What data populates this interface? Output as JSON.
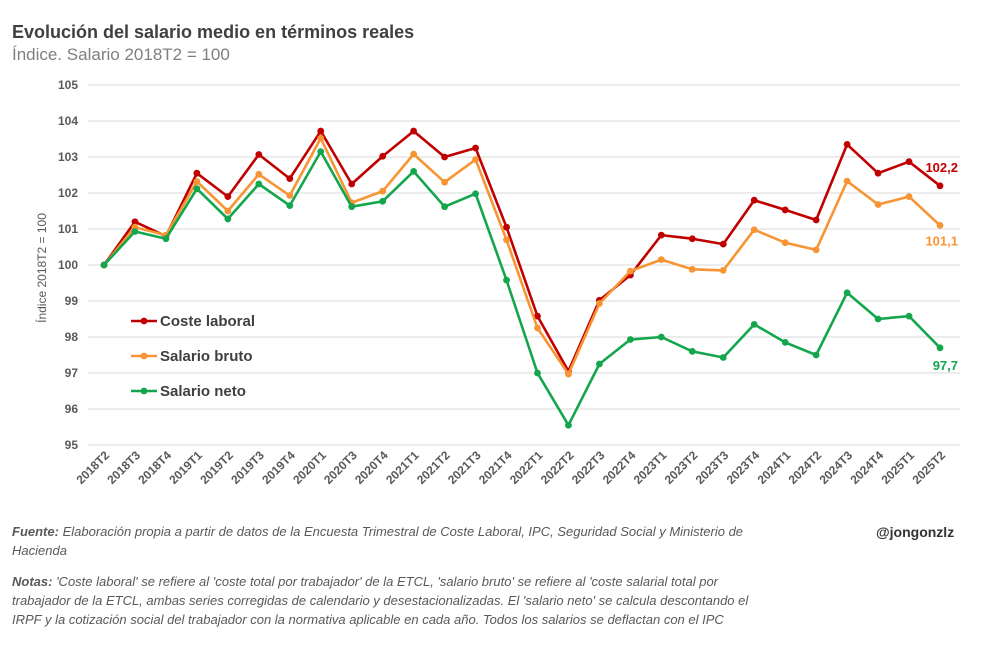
{
  "title": "Evolución del salario medio en términos reales",
  "subtitle": "Índice. Salario 2018T2 = 100",
  "source_label": "Fuente:",
  "source_text": "Elaboración propia a partir de datos de la Encuesta Trimestral de Coste Laboral, IPC, Seguridad Social y Ministerio de Hacienda",
  "notes_label": "Notas:",
  "notes_text": "'Coste laboral' se refiere al 'coste total por trabajador' de la ETCL, 'salario bruto' se refiere al 'coste salarial total por trabajador de la ETCL, ambas series corregidas de calendario y desestacionalizadas. El 'salario neto' se calcula descontando el IRPF y la cotización social del trabajador con la normativa aplicable en cada año. Todos los salarios se deflactan con el IPC",
  "handle": "@jongonzlz",
  "chart_data": {
    "type": "line",
    "ylabel": "Índice 2018T2 = 100",
    "xlabel": "",
    "ylim": [
      95,
      105
    ],
    "yticks": [
      95,
      96,
      97,
      98,
      99,
      100,
      101,
      102,
      103,
      104,
      105
    ],
    "grid": "horizontal",
    "legend_position": "left-middle",
    "categories": [
      "2018T2",
      "2018T3",
      "2018T4",
      "2019T1",
      "2019T2",
      "2019T3",
      "2019T4",
      "2020T1",
      "2020T3",
      "2020T4",
      "2021T1",
      "2021T2",
      "2021T3",
      "2021T4",
      "2022T1",
      "2022T2",
      "2022T3",
      "2022T4",
      "2023T1",
      "2023T2",
      "2023T3",
      "2023T4",
      "2024T1",
      "2024T2",
      "2024T3",
      "2024T4",
      "2025T1",
      "2025T2"
    ],
    "series": [
      {
        "name": "Coste laboral",
        "color": "#c00000",
        "end_label": "102,2",
        "values": [
          100,
          101.2,
          100.8,
          102.55,
          101.9,
          103.07,
          102.4,
          103.72,
          102.25,
          103.02,
          103.72,
          103.0,
          103.25,
          101.05,
          98.58,
          97.05,
          99.02,
          99.72,
          100.83,
          100.73,
          100.58,
          101.8,
          101.53,
          101.25,
          103.35,
          102.55,
          102.87,
          102.2
        ]
      },
      {
        "name": "Salario bruto",
        "color": "#f79433",
        "end_label": "101,1",
        "values": [
          100,
          101.05,
          100.83,
          102.32,
          101.5,
          102.52,
          101.93,
          103.52,
          101.73,
          102.05,
          103.08,
          102.3,
          102.93,
          100.7,
          98.25,
          96.97,
          98.93,
          99.83,
          100.15,
          99.88,
          99.85,
          100.98,
          100.62,
          100.42,
          102.33,
          101.68,
          101.9,
          101.1
        ]
      },
      {
        "name": "Salario neto",
        "color": "#13a64c",
        "end_label": "97,7",
        "values": [
          100,
          100.93,
          100.73,
          102.12,
          101.28,
          102.25,
          101.65,
          103.15,
          101.62,
          101.77,
          102.6,
          101.62,
          101.98,
          99.58,
          97.0,
          95.55,
          97.25,
          97.93,
          98.0,
          97.6,
          97.43,
          98.35,
          97.85,
          97.5,
          99.23,
          98.5,
          98.58,
          97.7
        ]
      }
    ]
  }
}
